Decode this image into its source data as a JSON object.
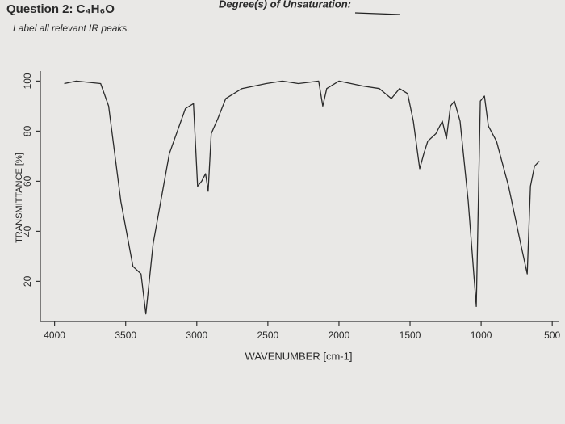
{
  "chart_data": {
    "type": "line",
    "title": "Question 2: C₄H₆O",
    "subtitle": "Label all relevant IR peaks.",
    "annotation": "Degree(s) of Unsaturation:",
    "x_label": "WAVENUMBER [cm-1]",
    "y_label": "TRANSMITTANCE [%]",
    "x": [
      3932,
      3847,
      3676,
      3620,
      3534,
      3449,
      3392,
      3358,
      3307,
      3193,
      3080,
      3023,
      2994,
      2966,
      2938,
      2920,
      2898,
      2852,
      2796,
      2682,
      2512,
      2398,
      2285,
      2143,
      2114,
      2086,
      2000,
      1830,
      1716,
      1631,
      1574,
      1517,
      1477,
      1432,
      1403,
      1375,
      1318,
      1273,
      1244,
      1216,
      1188,
      1148,
      1091,
      1034,
      1006,
      977,
      949,
      892,
      807,
      722,
      676,
      653,
      625,
      591
    ],
    "values": [
      99,
      100,
      99,
      90,
      52,
      26,
      23,
      7,
      35,
      71,
      89,
      91,
      58,
      60,
      63,
      56,
      79,
      85,
      93,
      97,
      99,
      100,
      99,
      100,
      90,
      97,
      100,
      98,
      97,
      93,
      97,
      95,
      84,
      65,
      71,
      76,
      79,
      84,
      77,
      90,
      92,
      84,
      52,
      10,
      92,
      94,
      82,
      76,
      58,
      35,
      23,
      58,
      66,
      68
    ],
    "color": "#2b2b2b",
    "xlim": [
      4100,
      450
    ],
    "ylim": [
      4,
      104
    ],
    "xticks": [
      4000,
      3500,
      3000,
      2500,
      2000,
      1500,
      1000,
      500
    ],
    "yticks": [
      20,
      40,
      60,
      80,
      100
    ],
    "grid": false
  }
}
